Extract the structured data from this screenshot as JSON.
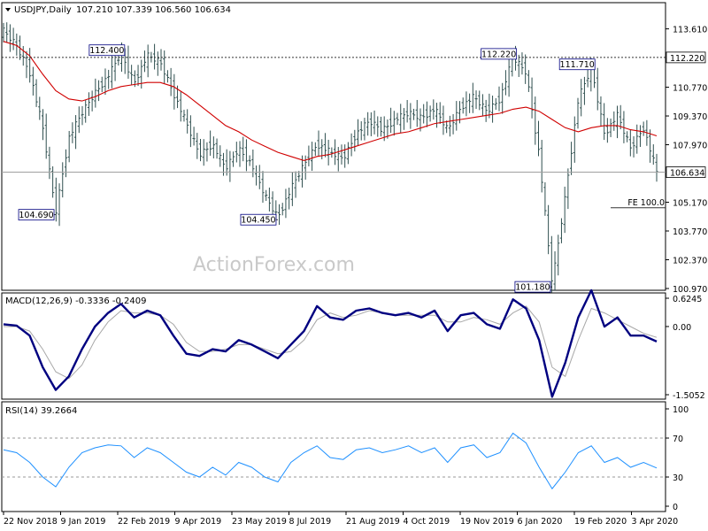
{
  "header": {
    "symbol": "USDJPY,Daily",
    "ohlc": "107.210 107.339 106.560 106.634"
  },
  "watermark": "ActionForex.com",
  "colors": {
    "bars": "#2f4f4f",
    "ma": "#d00000",
    "macd": "#000080",
    "signal": "#a8a8a8",
    "rsi": "#1e90ff"
  },
  "chart_data": [
    {
      "type": "line",
      "panel": "price",
      "ylim": [
        100.97,
        114.8
      ],
      "y_ticks": [
        "113.610",
        "112.220",
        "110.770",
        "109.370",
        "107.970",
        "106.634",
        "105.170",
        "103.770",
        "102.370",
        "100.970"
      ],
      "annotations": [
        {
          "label": "104.690",
          "value": 104.69
        },
        {
          "label": "112.400",
          "value": 112.4
        },
        {
          "label": "104.450",
          "value": 104.45
        },
        {
          "label": "112.220",
          "value": 112.22
        },
        {
          "label": "111.710",
          "value": 111.71
        },
        {
          "label": "101.180",
          "value": 101.18
        }
      ],
      "reference_lines": [
        {
          "label": "112.220",
          "value": 112.22,
          "style": "dotted"
        },
        {
          "label": "106.634",
          "value": 106.634,
          "style": "solid"
        },
        {
          "label": "FE 100.0",
          "value": 104.9,
          "style": "solid"
        }
      ],
      "series": [
        {
          "values": [
            113.5,
            112.8,
            111.5,
            108.8,
            104.69,
            108.3,
            109.5,
            110.5,
            111.3,
            112.4,
            111.0,
            112.3,
            112.0,
            110.5,
            109.0,
            107.5,
            108.0,
            106.8,
            107.8,
            107.0,
            105.5,
            104.45,
            105.8,
            107.0,
            108.0,
            107.6,
            107.3,
            108.5,
            109.1,
            108.7,
            109.2,
            109.5,
            109.3,
            109.7,
            108.7,
            109.8,
            110.3,
            109.6,
            110.2,
            112.22,
            111.5,
            107.5,
            101.18,
            105.5,
            110.2,
            111.71,
            108.5,
            109.4,
            107.8,
            108.8,
            106.634
          ]
        },
        {
          "name": "",
          "values": [
            113.0,
            112.8,
            112.3,
            111.4,
            110.6,
            110.2,
            110.1,
            110.3,
            110.6,
            110.8,
            110.9,
            111.0,
            111.0,
            110.8,
            110.4,
            109.9,
            109.4,
            108.9,
            108.6,
            108.2,
            107.9,
            107.6,
            107.4,
            107.2,
            107.4,
            107.5,
            107.7,
            107.9,
            108.1,
            108.3,
            108.5,
            108.6,
            108.8,
            109.0,
            109.1,
            109.2,
            109.3,
            109.4,
            109.5,
            109.7,
            109.8,
            109.6,
            109.2,
            108.8,
            108.6,
            108.8,
            108.9,
            108.9,
            108.7,
            108.6,
            108.4
          ]
        }
      ]
    },
    {
      "type": "line",
      "panel": "macd",
      "label": "MACD(12,26,9) -0.3336 -0.2409",
      "ylim": [
        -1.5052,
        0.6245
      ],
      "y_ticks": [
        "0.6245",
        "0.00",
        "-1.5052"
      ],
      "series": [
        {
          "values": [
            0.05,
            0.02,
            -0.2,
            -0.9,
            -1.4,
            -1.1,
            -0.5,
            0.0,
            0.3,
            0.5,
            0.2,
            0.35,
            0.25,
            -0.2,
            -0.6,
            -0.65,
            -0.5,
            -0.55,
            -0.3,
            -0.4,
            -0.55,
            -0.7,
            -0.4,
            -0.1,
            0.45,
            0.2,
            0.15,
            0.35,
            0.4,
            0.3,
            0.25,
            0.3,
            0.2,
            0.35,
            -0.1,
            0.25,
            0.3,
            0.05,
            -0.05,
            0.6,
            0.4,
            -0.3,
            -1.55,
            -0.8,
            0.2,
            0.8,
            0.0,
            0.2,
            -0.2,
            -0.2,
            -0.33
          ]
        },
        {
          "values": [
            0.0,
            0.0,
            -0.1,
            -0.5,
            -1.0,
            -1.15,
            -0.85,
            -0.3,
            0.1,
            0.35,
            0.3,
            0.3,
            0.25,
            0.05,
            -0.35,
            -0.55,
            -0.55,
            -0.5,
            -0.4,
            -0.4,
            -0.5,
            -0.6,
            -0.55,
            -0.3,
            0.15,
            0.3,
            0.2,
            0.25,
            0.35,
            0.3,
            0.25,
            0.25,
            0.25,
            0.25,
            0.1,
            0.1,
            0.2,
            0.15,
            0.05,
            0.3,
            0.45,
            0.1,
            -0.9,
            -1.1,
            -0.3,
            0.4,
            0.3,
            0.15,
            0.0,
            -0.15,
            -0.24
          ]
        }
      ]
    },
    {
      "type": "line",
      "panel": "rsi",
      "label": "RSI(14) 39.2664",
      "ylim": [
        0,
        100
      ],
      "y_ticks": [
        "100",
        "70",
        "30",
        "0"
      ],
      "levels": [
        70,
        30
      ],
      "series": [
        {
          "values": [
            58,
            55,
            45,
            30,
            20,
            40,
            55,
            60,
            63,
            62,
            50,
            60,
            55,
            45,
            35,
            30,
            40,
            32,
            45,
            40,
            30,
            25,
            45,
            55,
            62,
            50,
            48,
            58,
            60,
            55,
            58,
            62,
            55,
            60,
            45,
            60,
            63,
            50,
            55,
            75,
            65,
            40,
            18,
            35,
            55,
            62,
            45,
            50,
            40,
            45,
            39.27
          ]
        }
      ]
    }
  ],
  "x_axis": {
    "labels": [
      "22 Nov 2018",
      "9 Jan 2019",
      "22 Feb 2019",
      "9 Apr 2019",
      "23 May 2019",
      "8 Jul 2019",
      "21 Aug 2019",
      "4 Oct 2019",
      "19 Nov 2019",
      "6 Jan 2020",
      "19 Feb 2020",
      "3 Apr 2020"
    ]
  }
}
